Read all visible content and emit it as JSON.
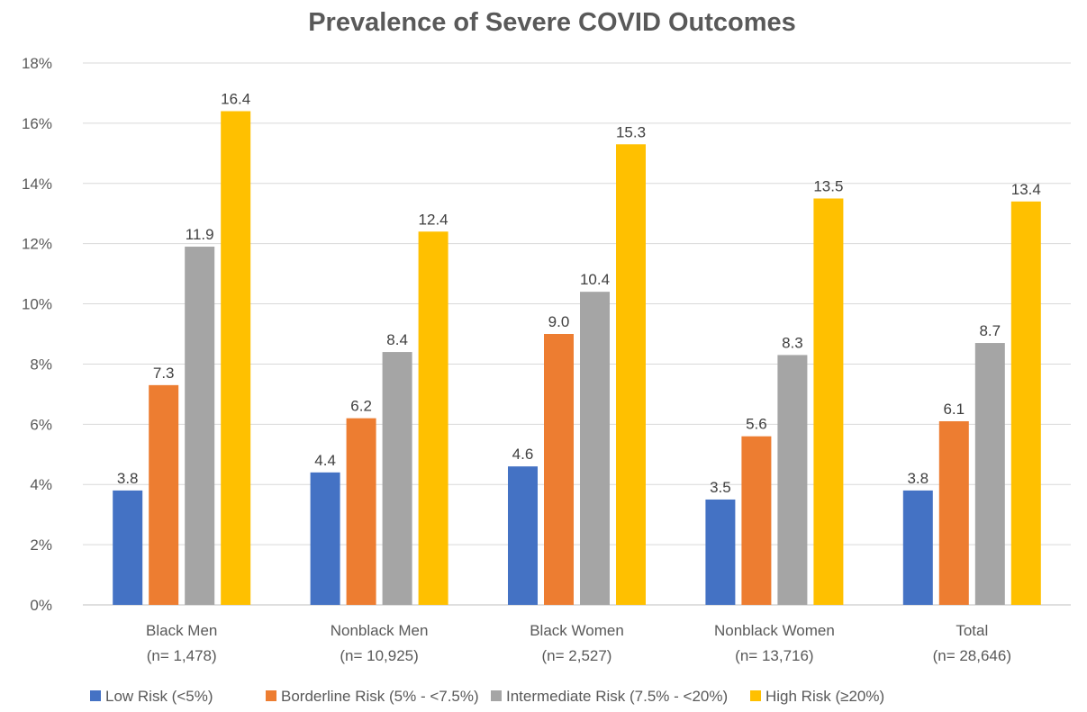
{
  "chart_data": {
    "type": "bar",
    "title": "Prevalence of Severe COVID Outcomes",
    "xlabel": "",
    "ylabel": "",
    "ylim": [
      0,
      18
    ],
    "yticks": [
      "0%",
      "2%",
      "4%",
      "6%",
      "8%",
      "10%",
      "12%",
      "14%",
      "16%",
      "18%"
    ],
    "ytick_values": [
      0,
      2,
      4,
      6,
      8,
      10,
      12,
      14,
      16,
      18
    ],
    "grid": true,
    "legend_position": "bottom",
    "categories": [
      {
        "name": "Black Men",
        "n": "(n= 1,478)"
      },
      {
        "name": "Nonblack Men",
        "n": "(n= 10,925)"
      },
      {
        "name": "Black Women",
        "n": "(n= 2,527)"
      },
      {
        "name": "Nonblack Women",
        "n": "(n= 13,716)"
      },
      {
        "name": "Total",
        "n": "(n= 28,646)"
      }
    ],
    "series": [
      {
        "name": "Low Risk (<5%)",
        "color": "#4472C4",
        "values": [
          3.8,
          4.4,
          4.6,
          3.5,
          3.8
        ],
        "labels": [
          "3.8",
          "4.4",
          "4.6",
          "3.5",
          "3.8"
        ]
      },
      {
        "name": "Borderline Risk (5% - <7.5%)",
        "color": "#ED7D31",
        "values": [
          7.3,
          6.2,
          9.0,
          5.6,
          6.1
        ],
        "labels": [
          "7.3",
          "6.2",
          "9.0",
          "5.6",
          "6.1"
        ]
      },
      {
        "name": "Intermediate Risk (7.5% - <20%)",
        "color": "#A5A5A5",
        "values": [
          11.9,
          8.4,
          10.4,
          8.3,
          8.7
        ],
        "labels": [
          "11.9",
          "8.4",
          "10.4",
          "8.3",
          "8.7"
        ]
      },
      {
        "name": "High Risk (≥20%)",
        "color": "#FFC000",
        "values": [
          16.4,
          12.4,
          15.3,
          13.5,
          13.4
        ],
        "labels": [
          "16.4",
          "12.4",
          "15.3",
          "13.5",
          "13.4"
        ]
      }
    ]
  }
}
